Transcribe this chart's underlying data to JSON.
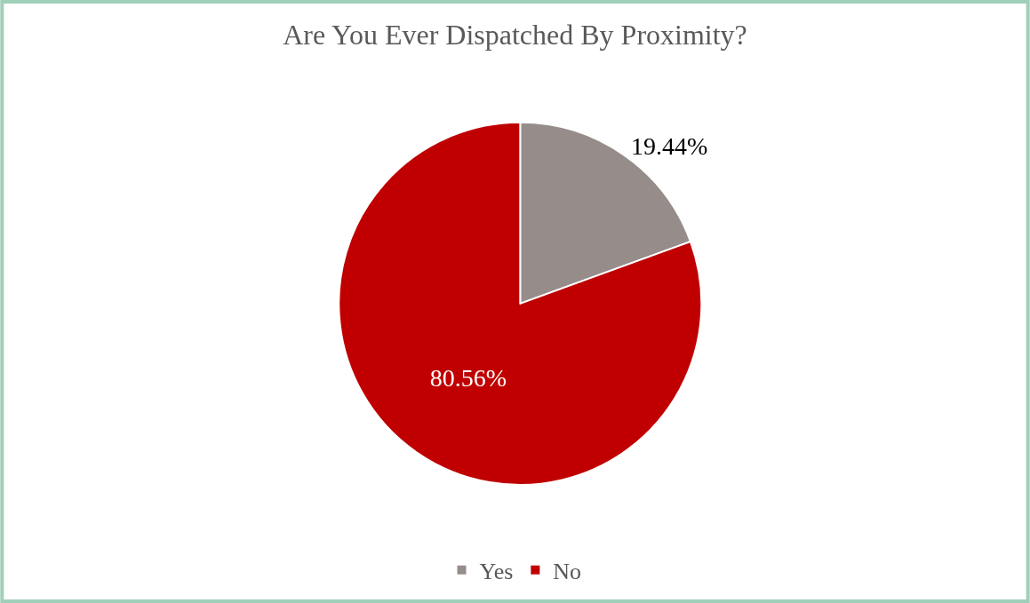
{
  "chart_data": {
    "type": "pie",
    "title": "Are You Ever Dispatched By Proximity?",
    "categories": [
      "Yes",
      "No"
    ],
    "values": [
      19.44,
      80.56
    ],
    "colors": [
      "#968d8b",
      "#c00000"
    ],
    "value_labels": [
      "19.44%",
      "80.56%"
    ],
    "legend": "bottom"
  }
}
